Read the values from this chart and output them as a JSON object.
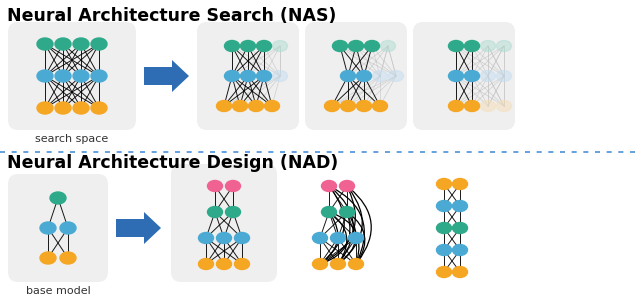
{
  "title_nas": "Neural Architecture Search (NAS)",
  "title_nad": "Neural Architecture Design (NAD)",
  "label_search": "search space",
  "label_base": "base model",
  "color_orange": "#F5A623",
  "color_blue": "#4BAAD4",
  "color_teal": "#2EAA8A",
  "color_pink": "#F06292",
  "color_arrow": "#2E6DB4",
  "color_bg": "#EFEFEF",
  "color_ghost_blue": "#C5DEF0",
  "color_ghost_teal": "#B0DDD3",
  "color_ghost_orange": "#F5DFB8",
  "color_separator": "#4A90D9",
  "fig_w": 6.4,
  "fig_h": 3.04,
  "dpi": 100
}
